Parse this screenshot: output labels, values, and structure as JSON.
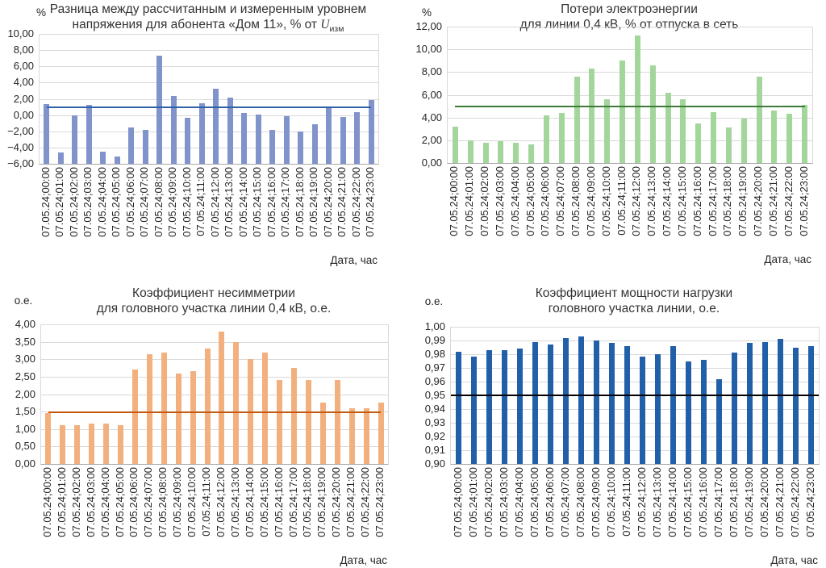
{
  "figure": {
    "xaxis_caption": "Дата, час",
    "date": "07.05.24",
    "grid_color": "#d9d9d9",
    "axis_color": "#a6a6a6",
    "text_color": "#262626"
  },
  "chart_data": [
    {
      "type": "bar",
      "title_line1": "Разница между рассчитанным и измеренным уровнем",
      "title_line2_prefix": "напряжения для абонента «Дом 11», % от ",
      "title_symbol": "U",
      "title_symbol_sub": "изм",
      "unit": "%",
      "ylabel": "%",
      "xlabel": "Дата, час",
      "ylim": [
        -6,
        10
      ],
      "ystep": 2,
      "yticks": [
        "10,00",
        "8,00",
        "6,00",
        "4,00",
        "2,00",
        "0,00",
        "−2,00",
        "−4,00",
        "−6,00"
      ],
      "refline": 1.0,
      "colors": {
        "bar": "#8093cb",
        "refline": "#3060a8"
      },
      "categories": [
        "07.05.24;00:00",
        "07.05.24;01:00",
        "07.05.24;02:00",
        "07.05.24;03:00",
        "07.05.24;04:00",
        "07.05.24;05:00",
        "07.05.24;06:00",
        "07.05.24;07:00",
        "07.05.24;08:00",
        "07.05.24;09:00",
        "07.05.24;10:00",
        "07.05.24;11:00",
        "07.05.24;12:00",
        "07.05.24;13:00",
        "07.05.24;14:00",
        "07.05.24;15:00",
        "07.05.24;16:00",
        "07.05.24;17:00",
        "07.05.24;18:00",
        "07.05.24;19:00",
        "07.05.24;20:00",
        "07.05.24;21:00",
        "07.05.24;22:00",
        "07.05.24;23:00"
      ],
      "values": [
        1.4,
        -4.6,
        0.0,
        1.3,
        -4.5,
        -5.1,
        -1.5,
        -1.8,
        7.3,
        2.3,
        -0.3,
        1.5,
        3.2,
        2.2,
        0.3,
        0.1,
        -1.8,
        -0.1,
        -2.0,
        -1.1,
        1.0,
        -0.2,
        0.4,
        1.9
      ]
    },
    {
      "type": "bar",
      "title_line1": "Потери электроэнергии",
      "title_line2": "для линии 0,4 кВ, % от отпуска в сеть",
      "unit": "%",
      "ylabel": "%",
      "xlabel": "Дата, час",
      "ylim": [
        0,
        12
      ],
      "ystep": 2,
      "yticks": [
        "12,00",
        "10,00",
        "8,00",
        "6,00",
        "4,00",
        "2,00",
        "0,00"
      ],
      "refline": 5.0,
      "colors": {
        "bar": "#a3d69b",
        "refline": "#3c7c36"
      },
      "categories": [
        "07.05.24;00:00",
        "07.05.24;01:00",
        "07.05.24;02:00",
        "07.05.24;03:00",
        "07.05.24;04:00",
        "07.05.24;05:00",
        "07.05.24;06:00",
        "07.05.24;07:00",
        "07.05.24;08:00",
        "07.05.24;09:00",
        "07.05.24;10:00",
        "07.05.24;11:00",
        "07.05.24;12:00",
        "07.05.24;13:00",
        "07.05.24;14:00",
        "07.05.24;15:00",
        "07.05.24;16:00",
        "07.05.24;17:00",
        "07.05.24;18:00",
        "07.05.24;19:00",
        "07.05.24;20:00",
        "07.05.24;21:00",
        "07.05.24;22:00",
        "07.05.24;23:00"
      ],
      "values": [
        3.2,
        2.0,
        1.8,
        1.9,
        1.8,
        1.6,
        4.2,
        4.4,
        7.6,
        8.3,
        5.6,
        9.0,
        11.2,
        8.6,
        6.2,
        5.6,
        3.5,
        4.5,
        3.1,
        3.9,
        7.6,
        4.6,
        4.3,
        5.1
      ]
    },
    {
      "type": "bar",
      "title_line1": "Коэффициент несимметрии",
      "title_line2": "для головного участка линии 0,4 кВ, о.е.",
      "unit": "о.е.",
      "ylabel": "о.е.",
      "xlabel": "Дата, час",
      "ylim": [
        0,
        4
      ],
      "ystep": 0.5,
      "yticks": [
        "4,00",
        "3,50",
        "3,00",
        "2,50",
        "2,00",
        "1,50",
        "1,00",
        "0,50",
        "0,00"
      ],
      "refline": 1.48,
      "colors": {
        "bar": "#f3b07f",
        "refline": "#c3590f"
      },
      "categories": [
        "07.05.24;00:00",
        "07.05.24;01:00",
        "07.05.24;02:00",
        "07.05.24;03:00",
        "07.05.24;04:00",
        "07.05.24;05:00",
        "07.05.24;06:00",
        "07.05.24;07:00",
        "07.05.24;08:00",
        "07.05.24;09:00",
        "07.05.24;10:00",
        "07.05.24;11:00",
        "07.05.24;12:00",
        "07.05.24;13:00",
        "07.05.24;14:00",
        "07.05.24;15:00",
        "07.05.24;16:00",
        "07.05.24;17:00",
        "07.05.24;18:00",
        "07.05.24;19:00",
        "07.05.24;20:00",
        "07.05.24;21:00",
        "07.05.24;22:00",
        "07.05.24;23:00"
      ],
      "values": [
        1.45,
        1.1,
        1.1,
        1.15,
        1.15,
        1.1,
        2.7,
        3.15,
        3.2,
        2.6,
        2.65,
        3.3,
        3.8,
        3.5,
        3.0,
        3.2,
        2.4,
        2.75,
        2.4,
        1.75,
        2.4,
        1.6,
        1.6,
        1.75
      ]
    },
    {
      "type": "bar",
      "title_line1": "Коэффициент мощности нагрузки",
      "title_line2": "головного участка линии, о.е.",
      "unit": "о.е.",
      "ylabel": "о.е.",
      "xlabel": "Дата, час",
      "ylim": [
        0.9,
        1.0
      ],
      "ystep": 0.01,
      "yticks": [
        "1,00",
        "0,99",
        "0,98",
        "0,97",
        "0,96",
        "0,95",
        "0,94",
        "0,93",
        "0,92",
        "0,91",
        "0,90"
      ],
      "refline": 0.95,
      "colors": {
        "bar": "#215fa8",
        "refline": "#000000"
      },
      "categories": [
        "07.05.24;00:00",
        "07.05.24;01:00",
        "07.05.24;02:00",
        "07.05.24;03:00",
        "07.05.24;04:00",
        "07.05.24;05:00",
        "07.05.24;06:00",
        "07.05.24;07:00",
        "07.05.24;08:00",
        "07.05.24;09:00",
        "07.05.24;10:00",
        "07.05.24;11:00",
        "07.05.24;12:00",
        "07.05.24;13:00",
        "07.05.24;14:00",
        "07.05.24;15:00",
        "07.05.24;16:00",
        "07.05.24;17:00",
        "07.05.24;18:00",
        "07.05.24;19:00",
        "07.05.24;20:00",
        "07.05.24;21:00",
        "07.05.24;22:00",
        "07.05.24;23:00"
      ],
      "values": [
        0.982,
        0.978,
        0.983,
        0.983,
        0.984,
        0.989,
        0.987,
        0.992,
        0.993,
        0.99,
        0.988,
        0.986,
        0.978,
        0.98,
        0.986,
        0.975,
        0.976,
        0.962,
        0.981,
        0.988,
        0.989,
        0.991,
        0.985,
        0.986
      ]
    }
  ]
}
